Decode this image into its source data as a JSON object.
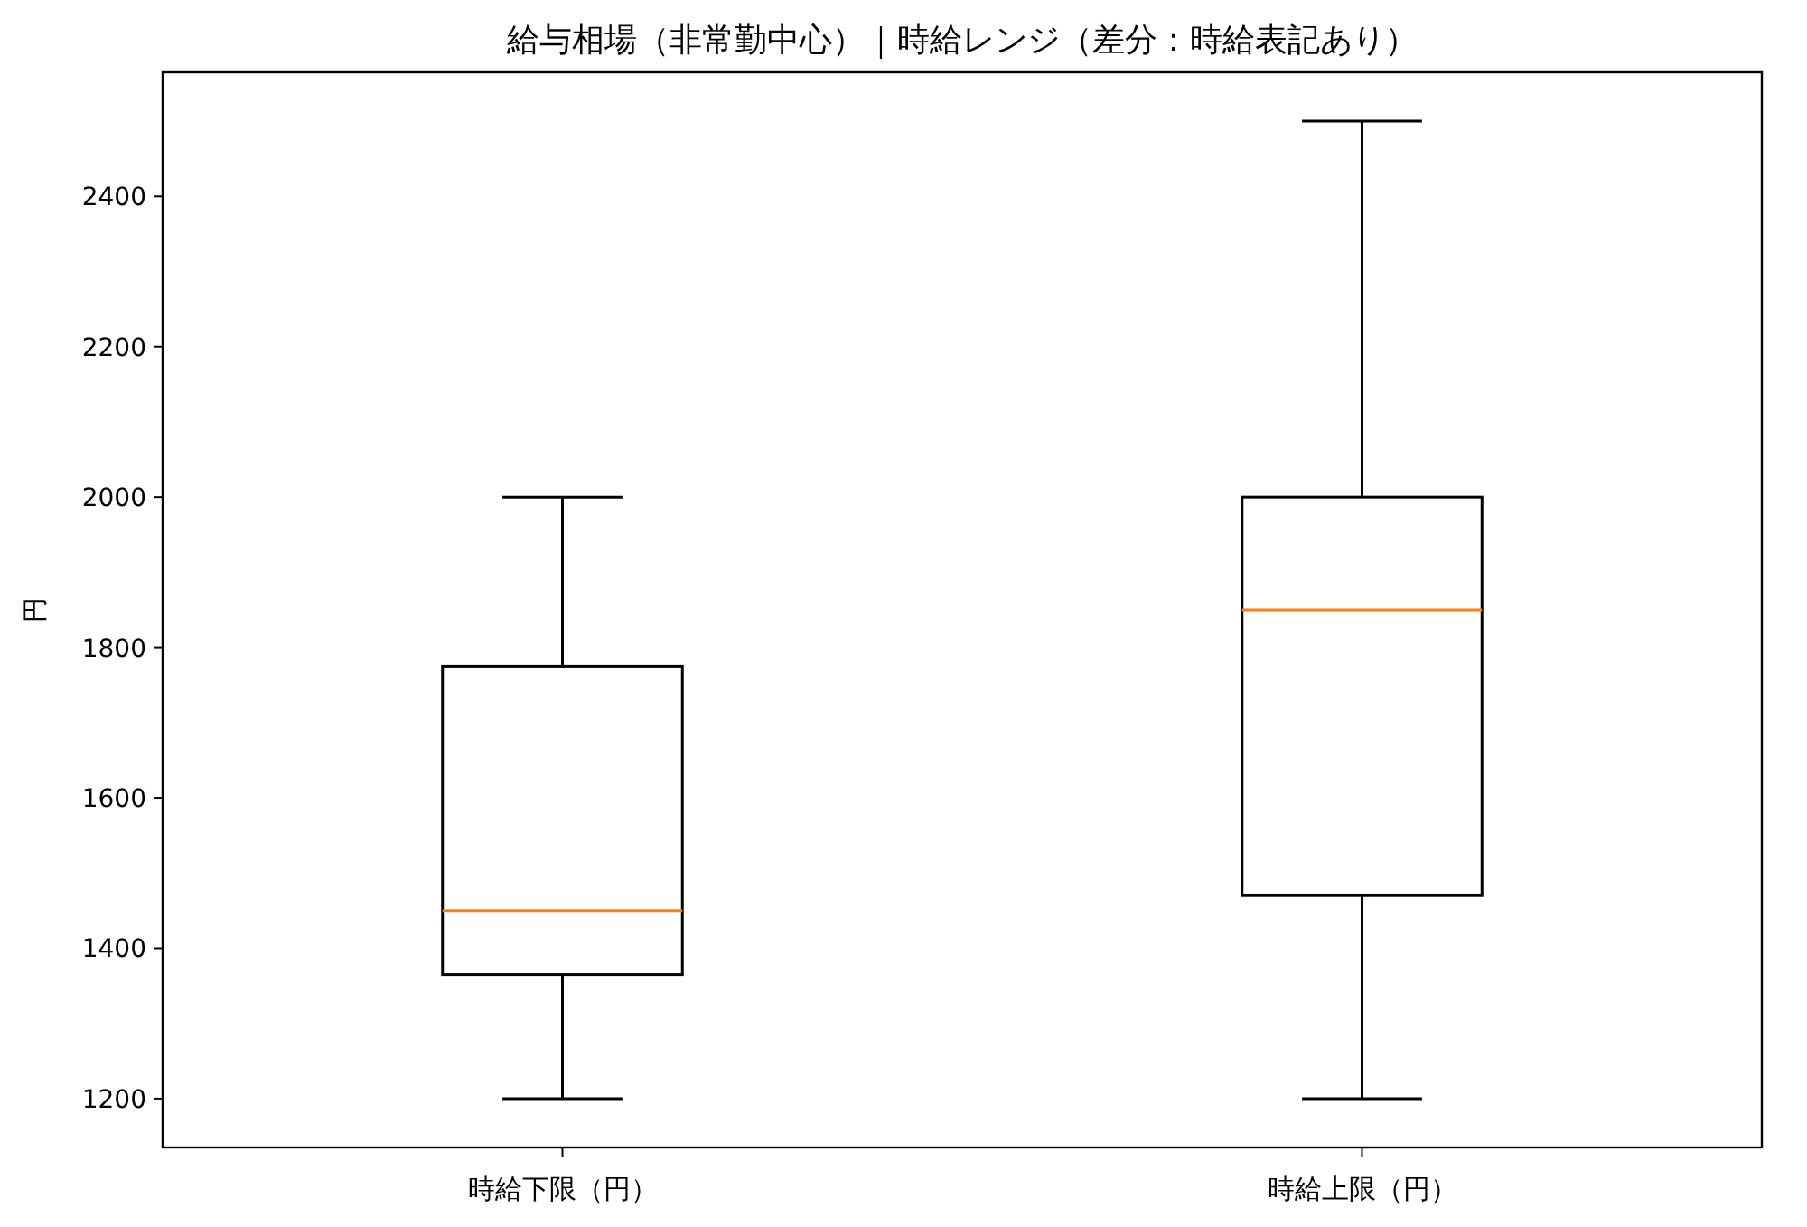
{
  "chart_data": {
    "type": "box",
    "title": "給与相場（非常勤中心）｜時給レンジ（差分：時給表記あり）",
    "ylabel": "円",
    "categories": [
      "時給下限（円）",
      "時給上限（円）"
    ],
    "boxes": [
      {
        "low": 1200,
        "q1": 1365,
        "median": 1450,
        "q3": 1775,
        "high": 2000
      },
      {
        "low": 1200,
        "q1": 1470,
        "median": 1850,
        "q3": 2000,
        "high": 2500
      }
    ],
    "ylim": [
      1135,
      2565
    ],
    "yticks": [
      1200,
      1400,
      1600,
      1800,
      2000,
      2200,
      2400
    ],
    "grid": false
  }
}
